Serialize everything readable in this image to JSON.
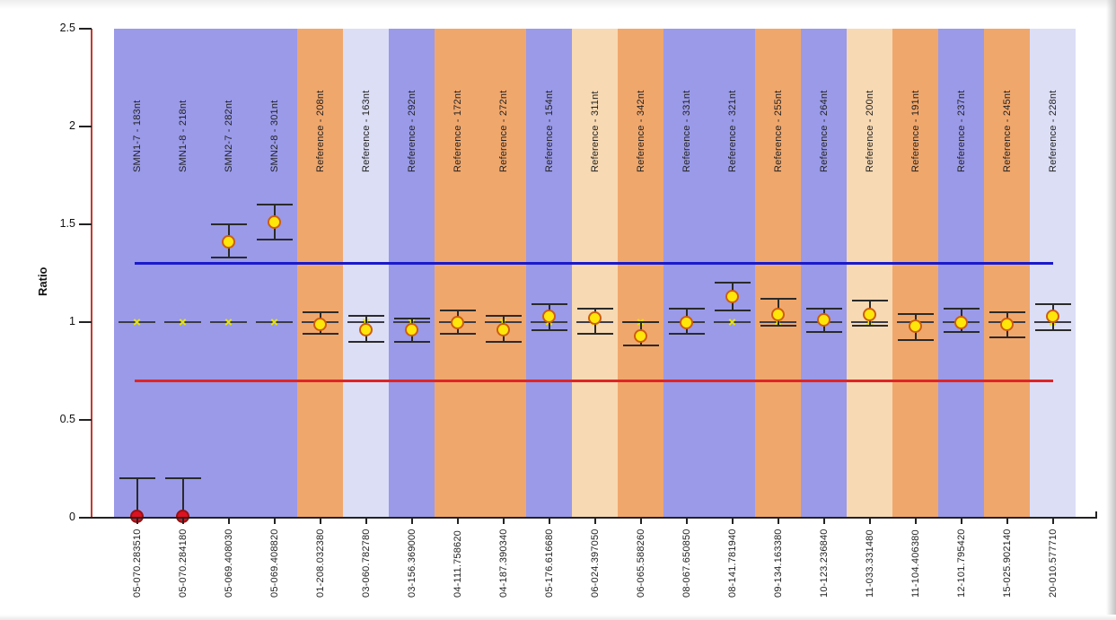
{
  "page": {
    "background": "#ffffff",
    "edge_shadow": "#c2c2c2"
  },
  "chart_data": {
    "type": "scatter",
    "title": "",
    "xlabel": "",
    "ylabel": "Ratio",
    "ylim": [
      0,
      2.5
    ],
    "yticks": [
      "0",
      "0.5",
      "1",
      "1.5",
      "2",
      "2.5"
    ],
    "grid": false,
    "legend": "none",
    "reference_lines": [
      {
        "name": "upper-threshold",
        "value": 1.3,
        "style": "solid",
        "color": "#1a1acc"
      },
      {
        "name": "normal-ratio",
        "value": 1.0,
        "style": "dashed",
        "color": "#3c3c48"
      },
      {
        "name": "lower-threshold",
        "value": 0.7,
        "style": "solid",
        "color": "#dd2526"
      }
    ],
    "columns": [
      {
        "probe": "SMN1-7 - 183nt",
        "x_label": "05-070.283510",
        "band": "blue",
        "value": 0.0,
        "err_low": 0.0,
        "err_high": 0.2,
        "marker": "red"
      },
      {
        "probe": "SMN1-8 - 218nt",
        "x_label": "05-070.284180",
        "band": "blue",
        "value": 0.0,
        "err_low": 0.0,
        "err_high": 0.2,
        "marker": "red"
      },
      {
        "probe": "SMN2-7 - 282nt",
        "x_label": "05-069.408030",
        "band": "blue",
        "value": 1.41,
        "err_low": 1.33,
        "err_high": 1.5,
        "marker": "yellow"
      },
      {
        "probe": "SMN2-8 - 301nt",
        "x_label": "05-069.408820",
        "band": "blue",
        "value": 1.51,
        "err_low": 1.42,
        "err_high": 1.6,
        "marker": "yellow"
      },
      {
        "probe": "Reference - 208nt",
        "x_label": "01-208.032380",
        "band": "orange",
        "value": 0.99,
        "err_low": 0.94,
        "err_high": 1.05,
        "marker": "yellow"
      },
      {
        "probe": "Reference - 163nt",
        "x_label": "03-060.782780",
        "band": "lavender",
        "value": 0.96,
        "err_low": 0.9,
        "err_high": 1.03,
        "marker": "yellow"
      },
      {
        "probe": "Reference - 292nt",
        "x_label": "03-156.369000",
        "band": "blue",
        "value": 0.96,
        "err_low": 0.9,
        "err_high": 1.02,
        "marker": "yellow"
      },
      {
        "probe": "Reference - 172nt",
        "x_label": "04-111.758620",
        "band": "orange",
        "value": 1.0,
        "err_low": 0.94,
        "err_high": 1.06,
        "marker": "yellow"
      },
      {
        "probe": "Reference - 272nt",
        "x_label": "04-187.390340",
        "band": "orange",
        "value": 0.96,
        "err_low": 0.9,
        "err_high": 1.03,
        "marker": "yellow"
      },
      {
        "probe": "Reference - 154nt",
        "x_label": "05-176.616680",
        "band": "blue",
        "value": 1.03,
        "err_low": 0.96,
        "err_high": 1.09,
        "marker": "yellow"
      },
      {
        "probe": "Reference - 311nt",
        "x_label": "06-024.397050",
        "band": "peach",
        "value": 1.02,
        "err_low": 0.94,
        "err_high": 1.07,
        "marker": "yellow"
      },
      {
        "probe": "Reference - 342nt",
        "x_label": "06-065.588260",
        "band": "orange",
        "value": 0.93,
        "err_low": 0.88,
        "err_high": 1.0,
        "marker": "yellow"
      },
      {
        "probe": "Reference - 331nt",
        "x_label": "08-067.650850",
        "band": "blue",
        "value": 1.0,
        "err_low": 0.94,
        "err_high": 1.07,
        "marker": "yellow"
      },
      {
        "probe": "Reference - 321nt",
        "x_label": "08-141.781940",
        "band": "blue",
        "value": 1.13,
        "err_low": 1.06,
        "err_high": 1.2,
        "marker": "yellow"
      },
      {
        "probe": "Reference - 255nt",
        "x_label": "09-134.163380",
        "band": "orange",
        "value": 1.04,
        "err_low": 0.98,
        "err_high": 1.12,
        "marker": "yellow"
      },
      {
        "probe": "Reference - 264nt",
        "x_label": "10-123.236840",
        "band": "blue",
        "value": 1.01,
        "err_low": 0.95,
        "err_high": 1.07,
        "marker": "yellow"
      },
      {
        "probe": "Reference - 200nt",
        "x_label": "11-033.331480",
        "band": "peach",
        "value": 1.04,
        "err_low": 0.98,
        "err_high": 1.11,
        "marker": "yellow"
      },
      {
        "probe": "Reference - 191nt",
        "x_label": "11-104.406380",
        "band": "orange",
        "value": 0.98,
        "err_low": 0.91,
        "err_high": 1.04,
        "marker": "yellow"
      },
      {
        "probe": "Reference - 237nt",
        "x_label": "12-101.795420",
        "band": "blue",
        "value": 1.0,
        "err_low": 0.95,
        "err_high": 1.07,
        "marker": "yellow"
      },
      {
        "probe": "Reference - 245nt",
        "x_label": "15-025.902140",
        "band": "orange",
        "value": 0.99,
        "err_low": 0.92,
        "err_high": 1.05,
        "marker": "yellow"
      },
      {
        "probe": "Reference - 228nt",
        "x_label": "20-010.577710",
        "band": "lavender",
        "value": 1.03,
        "err_low": 0.96,
        "err_high": 1.09,
        "marker": "yellow"
      }
    ],
    "colors": {
      "band_blue": "#9a9ae9",
      "band_orange": "#f0a76c",
      "band_lavender": "#dcdef6",
      "band_peach": "#f7d9b3",
      "upper_line": "#1a1acc",
      "lower_line": "#dd2526",
      "dashed_line": "#3c3c48",
      "axis_y": "#bf3a30",
      "axis_x": "#222222",
      "marker_yellow_fill": "#ffe60a",
      "marker_yellow_ring": "#cf5c0e",
      "marker_red_fill": "#dd1122",
      "marker_red_ring": "#991111",
      "x_mark": "#e6e400",
      "error_bar": "#2a2a2a",
      "text": "#222222"
    }
  }
}
